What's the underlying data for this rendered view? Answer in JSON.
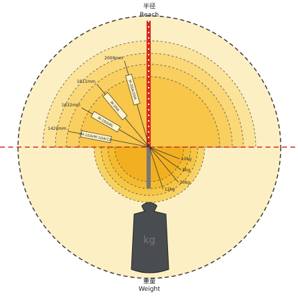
{
  "reach": {
    "title": "半径",
    "subtitle": "Reach"
  },
  "weight": {
    "title": "重量",
    "subtitle": "Weight",
    "unit": "kg"
  },
  "robots": [
    {
      "name": "M-20iA/35M",
      "reach": "2009mm",
      "payload": "10kg"
    },
    {
      "name": "M-20iA",
      "reach": "1811mm",
      "payload": "8kg"
    },
    {
      "name": "M-10iA/8L",
      "reach": "1632mm",
      "payload": "20kg"
    },
    {
      "name": "M-10iA/M-10iA/12",
      "reach": "1420mm",
      "payload": "12kg"
    }
  ]
}
